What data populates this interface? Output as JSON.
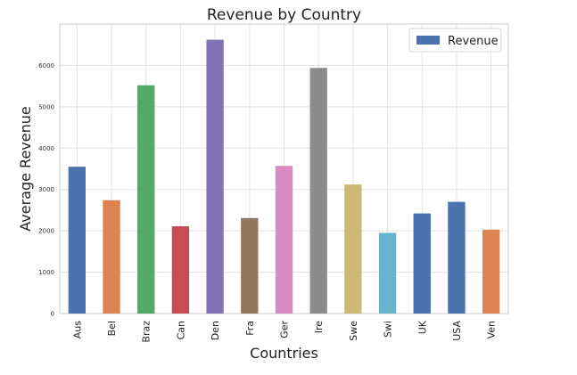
{
  "chart_data": {
    "type": "bar",
    "title": "Revenue by Country",
    "xlabel": "Countries",
    "ylabel": "Average Revenue",
    "categories": [
      "Aus",
      "Bel",
      "Braz",
      "Can",
      "Den",
      "Fra",
      "Ger",
      "Ire",
      "Swe",
      "Swi",
      "UK",
      "USA",
      "Ven"
    ],
    "series": [
      {
        "name": "Revenue",
        "values": [
          3550,
          2740,
          5520,
          2110,
          6620,
          2310,
          3570,
          5940,
          3120,
          1950,
          2420,
          2700,
          2030
        ]
      }
    ],
    "bar_colors": [
      "#4c72b0",
      "#dd8452",
      "#55a868",
      "#c44e52",
      "#8172b3",
      "#937860",
      "#da8bc3",
      "#8c8c8c",
      "#ccb974",
      "#64b5cd",
      "#4c72b0",
      "#4c72b0",
      "#dd8452"
    ],
    "legend_color": "#4c72b0",
    "ylim": [
      0,
      7000
    ],
    "yticks": [
      0,
      1000,
      2000,
      3000,
      4000,
      5000,
      6000
    ],
    "grid": true,
    "legend_position": "top-right"
  }
}
